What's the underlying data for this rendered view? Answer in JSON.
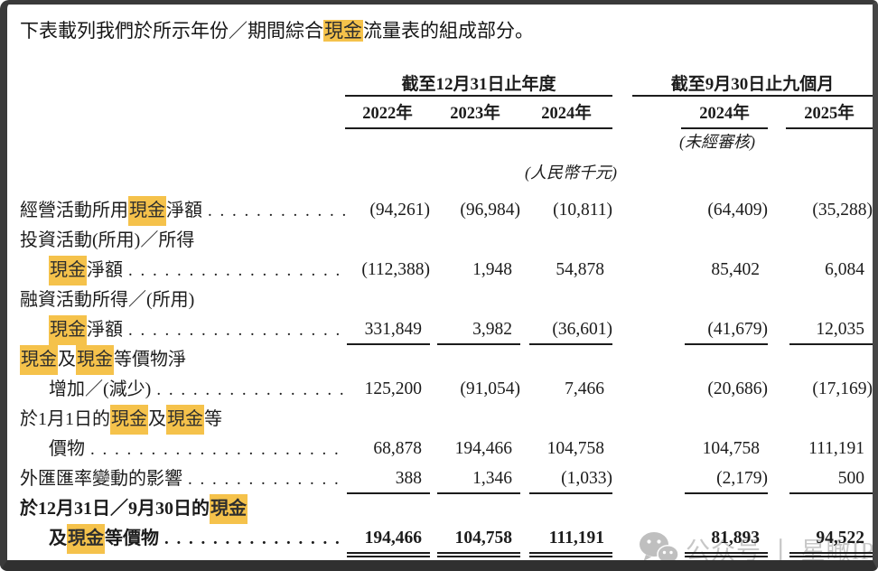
{
  "page": {
    "title_segments": [
      {
        "text": "下表載列我們於所示年份／期間綜合"
      },
      {
        "text": "現金",
        "highlight": true
      },
      {
        "text": "流量表的組成部分。"
      }
    ]
  },
  "table": {
    "header": {
      "group1": "截至12月31日止年度",
      "group2": "截至9月30日止九個月",
      "years": [
        "2022年",
        "2023年",
        "2024年",
        "2024年",
        "2025年"
      ],
      "unaudited_note": "(未經審核)",
      "currency_note": "(人民幣千元)"
    },
    "rows": [
      {
        "bold": false,
        "underline": "none",
        "lines": [
          {
            "indent": false,
            "dots": true,
            "segments": [
              {
                "text": "經營活動所用"
              },
              {
                "text": "現金",
                "highlight": true
              },
              {
                "text": "淨額"
              }
            ],
            "values": [
              "(94,261)",
              "(96,984)",
              "(10,811)",
              "(64,409)",
              "(35,288)"
            ]
          }
        ]
      },
      {
        "bold": false,
        "underline": "none",
        "lines": [
          {
            "indent": false,
            "dots": false,
            "segments": [
              {
                "text": "投資活動(所用)／所得"
              }
            ]
          },
          {
            "indent": true,
            "dots": true,
            "segments": [
              {
                "text": "現金",
                "highlight": true
              },
              {
                "text": "淨額"
              }
            ],
            "values": [
              "(112,388)",
              "1,948",
              "54,878",
              "85,402",
              "6,084"
            ]
          }
        ]
      },
      {
        "bold": false,
        "underline": "single",
        "lines": [
          {
            "indent": false,
            "dots": false,
            "segments": [
              {
                "text": "融資活動所得／(所用)"
              }
            ]
          },
          {
            "indent": true,
            "dots": true,
            "segments": [
              {
                "text": "現金",
                "highlight": true
              },
              {
                "text": "淨額"
              }
            ],
            "values": [
              "331,849",
              "3,982",
              "(36,601)",
              "(41,679)",
              "12,035"
            ]
          }
        ]
      },
      {
        "bold": false,
        "underline": "none",
        "lines": [
          {
            "indent": false,
            "dots": false,
            "segments": [
              {
                "text": "現金",
                "highlight": true
              },
              {
                "text": "及"
              },
              {
                "text": "現金",
                "highlight": true
              },
              {
                "text": "等價物淨"
              }
            ]
          },
          {
            "indent": true,
            "dots": true,
            "segments": [
              {
                "text": "增加／(減少)"
              }
            ],
            "values": [
              "125,200",
              "(91,054)",
              "7,466",
              "(20,686)",
              "(17,169)"
            ]
          }
        ]
      },
      {
        "bold": false,
        "underline": "none",
        "lines": [
          {
            "indent": false,
            "dots": false,
            "segments": [
              {
                "text": "於1月1日的"
              },
              {
                "text": "現金",
                "highlight": true
              },
              {
                "text": "及"
              },
              {
                "text": "現金",
                "highlight": true
              },
              {
                "text": "等"
              }
            ]
          },
          {
            "indent": true,
            "dots": true,
            "segments": [
              {
                "text": "價物"
              }
            ],
            "values": [
              "68,878",
              "194,466",
              "104,758",
              "104,758",
              "111,191"
            ]
          }
        ]
      },
      {
        "bold": false,
        "underline": "single",
        "lines": [
          {
            "indent": false,
            "dots": true,
            "segments": [
              {
                "text": "外匯匯率變動的影響"
              }
            ],
            "values": [
              "388",
              "1,346",
              "(1,033)",
              "(2,179)",
              "500"
            ]
          }
        ]
      },
      {
        "bold": true,
        "underline": "double",
        "lines": [
          {
            "indent": false,
            "dots": false,
            "segments": [
              {
                "text": "於12月31日／9月30日的"
              },
              {
                "text": "現金",
                "highlight": true
              }
            ]
          },
          {
            "indent": true,
            "dots": true,
            "segments": [
              {
                "text": "及"
              },
              {
                "text": "現金",
                "highlight": true
              },
              {
                "text": "等價物"
              }
            ],
            "values": [
              "194,466",
              "104,758",
              "111,191",
              "81,893",
              "94,522"
            ]
          }
        ]
      }
    ]
  },
  "watermark": {
    "icon": "wechat-icon",
    "text": "公众号 丨 星瞰IPO"
  },
  "colors": {
    "highlight": "#F5C24B",
    "text": "#1c1c1c",
    "rule": "#1c1c1c",
    "frame": "#3a3a3a",
    "watermark": "#c7c7c7"
  }
}
